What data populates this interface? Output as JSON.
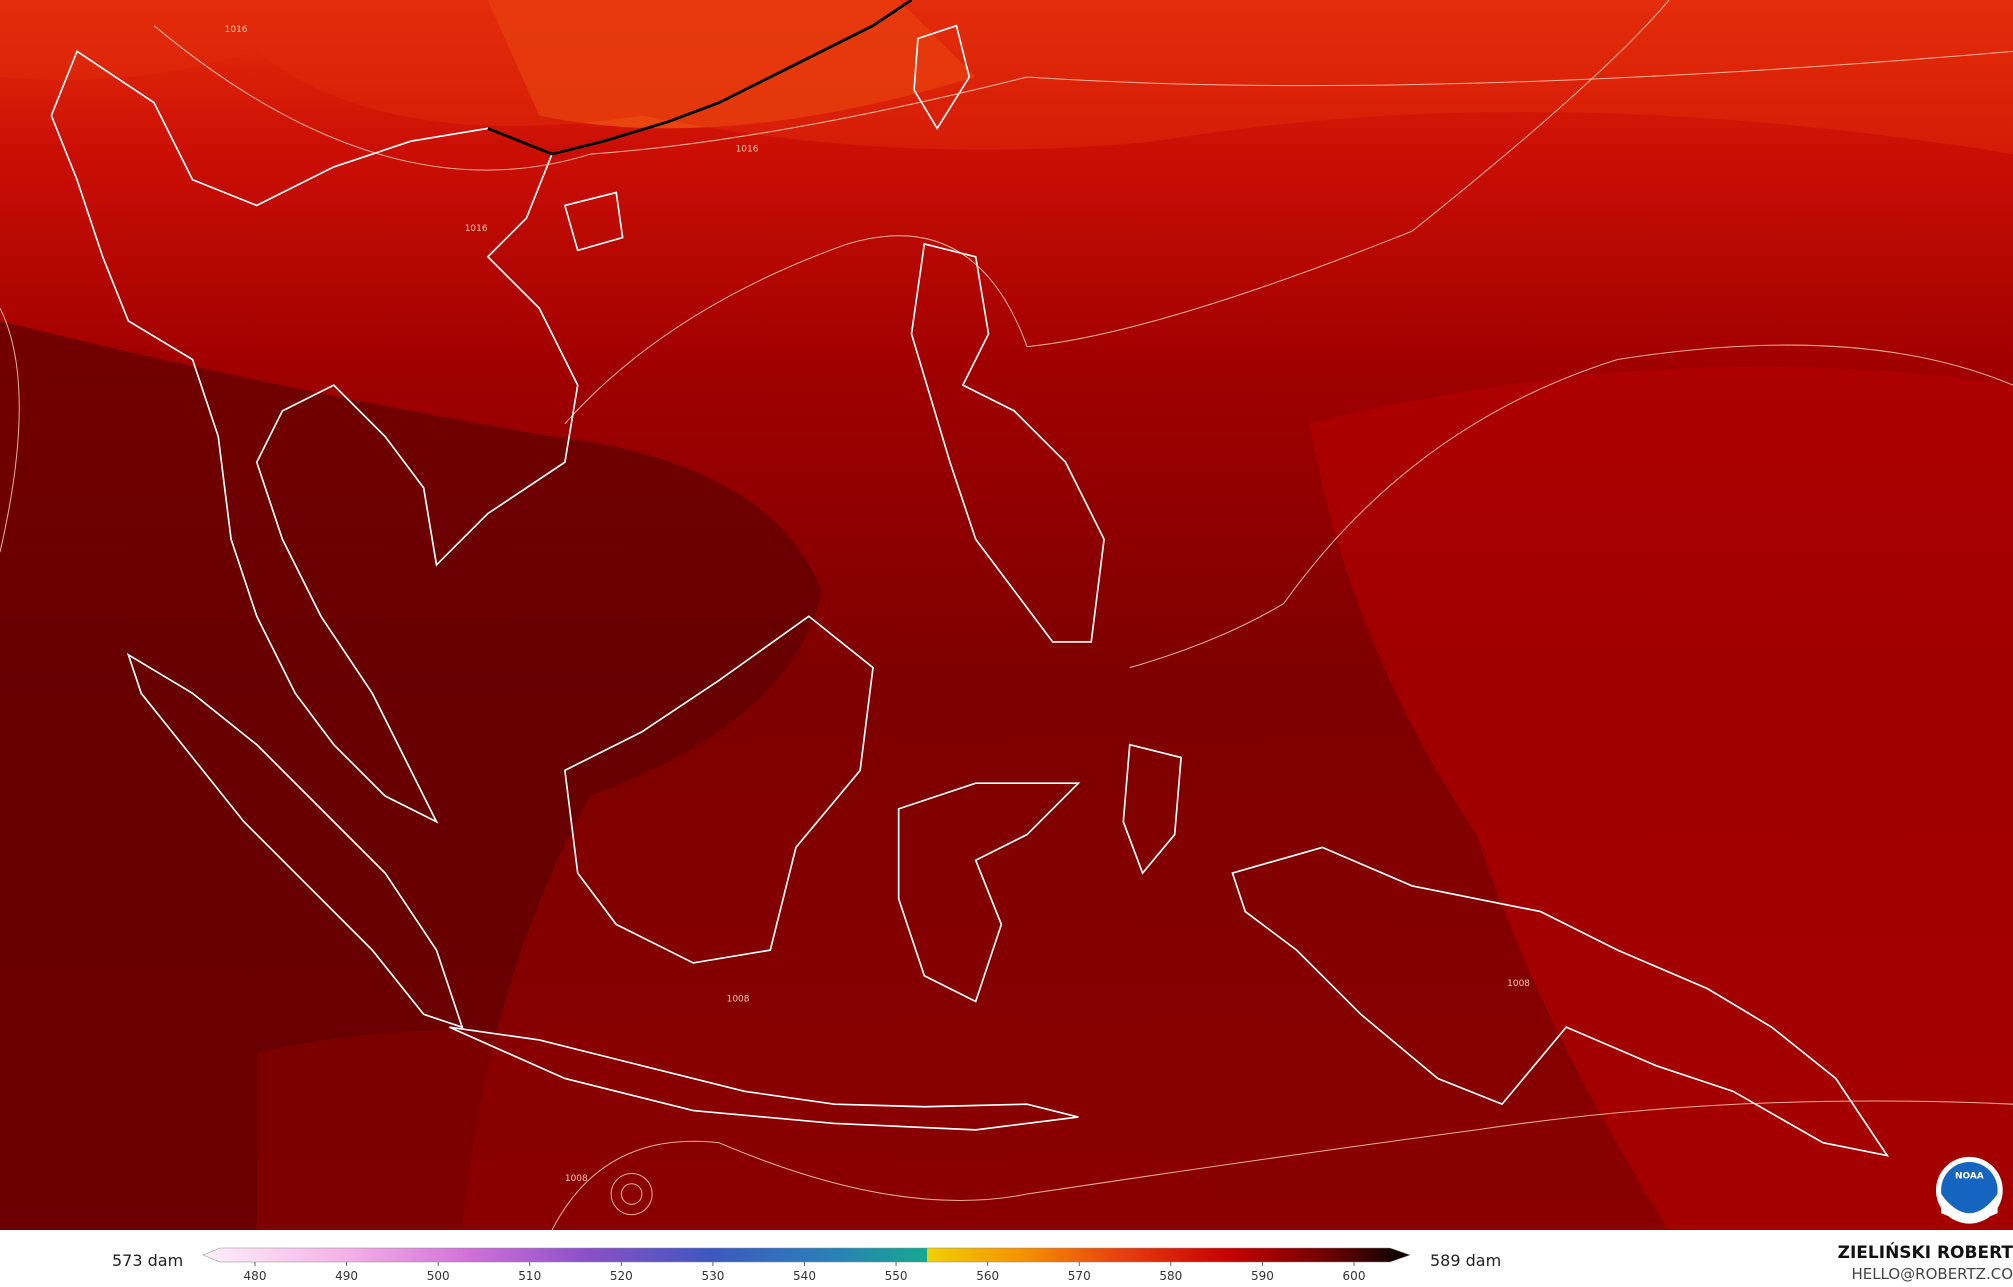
{
  "map": {
    "contour_labels": [
      "1016",
      "1016",
      "1016",
      "1008",
      "1008",
      "1008"
    ],
    "logo": "NOAA"
  },
  "legend": {
    "left_label": "573 dam",
    "right_label": "589 dam",
    "ticks": [
      480,
      490,
      500,
      510,
      520,
      530,
      540,
      550,
      560,
      570,
      580,
      590,
      600
    ]
  },
  "credit": {
    "author": "ZIELIŃSKI ROBERT",
    "contact": "HELLO@ROBERTZ.CO"
  }
}
